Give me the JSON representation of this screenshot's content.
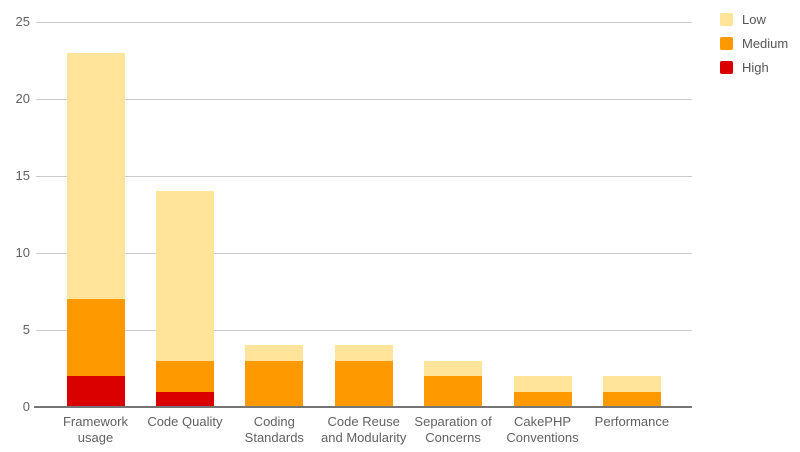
{
  "chart_data": {
    "type": "bar",
    "stacked": true,
    "title": "",
    "xlabel": "",
    "ylabel": "",
    "categories": [
      "Framework usage",
      "Code Quality",
      "Coding Standards",
      "Code Reuse and Modularity",
      "Separation of Concerns",
      "CakePHP Conventions",
      "Performance"
    ],
    "category_label_lines": [
      [
        "Framework",
        "usage"
      ],
      [
        "Code Quality"
      ],
      [
        "Coding",
        "Standards"
      ],
      [
        "Code Reuse",
        "and Modularity"
      ],
      [
        "Separation of",
        "Concerns"
      ],
      [
        "CakePHP",
        "Conventions"
      ],
      [
        "Performance"
      ]
    ],
    "series": [
      {
        "name": "High",
        "color": "#db0000",
        "values": [
          2,
          1,
          0,
          0,
          0,
          0,
          0
        ]
      },
      {
        "name": "Medium",
        "color": "#ff9900",
        "values": [
          5,
          2,
          3,
          3,
          2,
          1,
          1
        ]
      },
      {
        "name": "Low",
        "color": "#ffe49a",
        "values": [
          16,
          11,
          1,
          1,
          1,
          1,
          1
        ]
      }
    ],
    "stack_totals": [
      23,
      14,
      4,
      4,
      3,
      2,
      2
    ],
    "stack_order_bottom_to_top": [
      "High",
      "Medium",
      "Low"
    ],
    "y_ticks": [
      0,
      5,
      10,
      15,
      20,
      25
    ],
    "ylim": [
      0,
      25
    ],
    "grid": true,
    "legend": {
      "position": "right",
      "entries": [
        {
          "label": "Low",
          "color": "#ffe49a"
        },
        {
          "label": "Medium",
          "color": "#ff9900"
        },
        {
          "label": "High",
          "color": "#db0000"
        }
      ]
    },
    "colors": {
      "gridline": "#cccccc",
      "baseline": "#757575",
      "axis_label": "#616161",
      "legend_label": "#555555",
      "background": "#ffffff"
    }
  }
}
